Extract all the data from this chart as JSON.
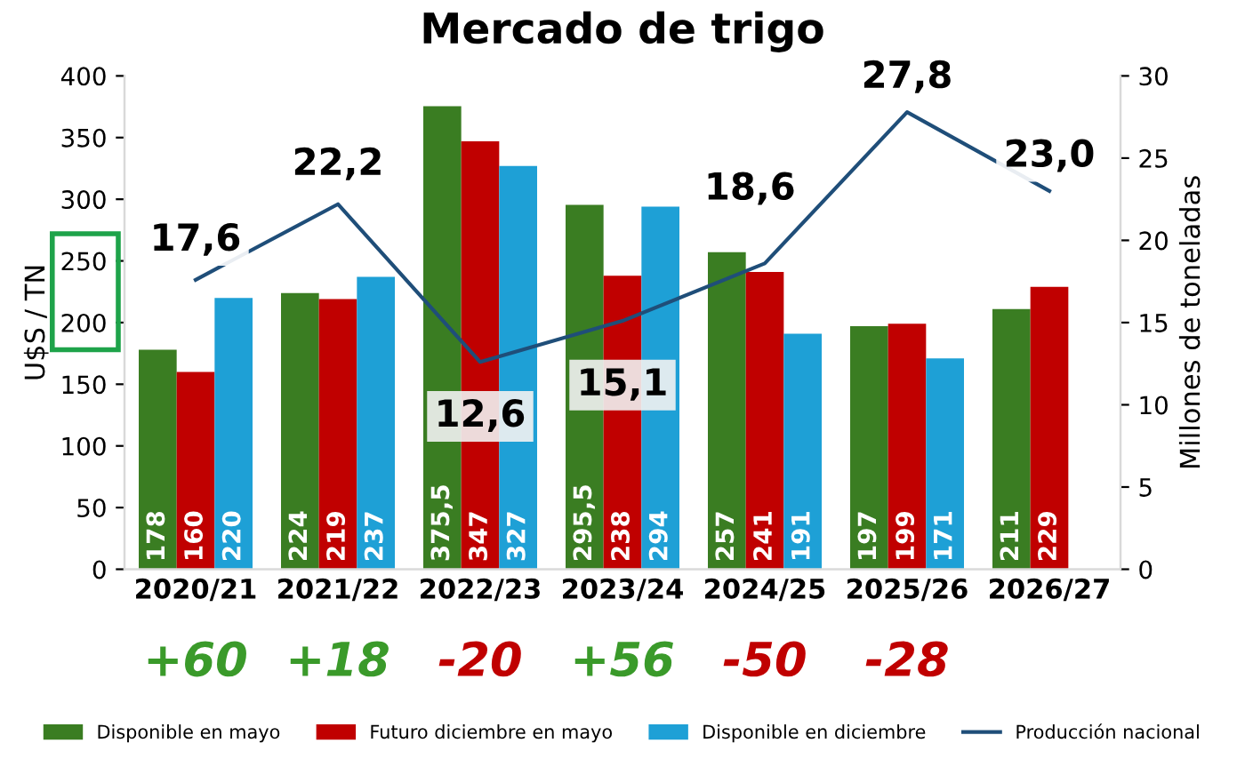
{
  "chart_data": {
    "type": "bar",
    "title": "Mercado de trigo",
    "ylabel": "U$S / TN",
    "y2label": "Millones de toneladas",
    "categories": [
      "2020/21",
      "2021/22",
      "2022/23",
      "2023/24",
      "2024/25",
      "2025/26",
      "2026/27"
    ],
    "series": [
      {
        "name": "Disponible en mayo",
        "color": "#3a7d22",
        "values": [
          178,
          224,
          375.5,
          295.5,
          257,
          197,
          211
        ],
        "value_labels": [
          "178",
          "224",
          "375,5",
          "295,5",
          "257",
          "197",
          "211"
        ]
      },
      {
        "name": "Futuro diciembre en mayo",
        "color": "#c00000",
        "values": [
          160,
          219,
          347,
          238,
          241,
          199,
          229
        ],
        "value_labels": [
          "160",
          "219",
          "347",
          "238",
          "241",
          "199",
          "229"
        ]
      },
      {
        "name": "Disponible en diciembre",
        "color": "#1ea0d6",
        "values": [
          220,
          237,
          327,
          294,
          191,
          171,
          null
        ],
        "value_labels": [
          "220",
          "237",
          "327",
          "294",
          "191",
          "171",
          null
        ]
      },
      {
        "name": "Producción nacional",
        "type": "line",
        "axis": "y2",
        "color": "#1f4e79",
        "values": [
          17.6,
          22.2,
          12.6,
          15.1,
          18.6,
          27.8,
          23.0
        ],
        "value_labels": [
          "17,6",
          "22,2",
          "12,6",
          "15,1",
          "18,6",
          "27,8",
          "23,0"
        ]
      }
    ],
    "ylim": [
      0,
      400
    ],
    "yticks": [
      0,
      50,
      100,
      150,
      200,
      250,
      300,
      350,
      400
    ],
    "y2lim": [
      0,
      30
    ],
    "y2ticks": [
      0,
      5,
      10,
      15,
      20,
      25,
      30
    ],
    "annotations": [
      "+60",
      "+18",
      "-20",
      "+56",
      "-50",
      "-28"
    ],
    "grid": false,
    "legend": "bottom",
    "marker": "none",
    "line_style": "solid"
  }
}
